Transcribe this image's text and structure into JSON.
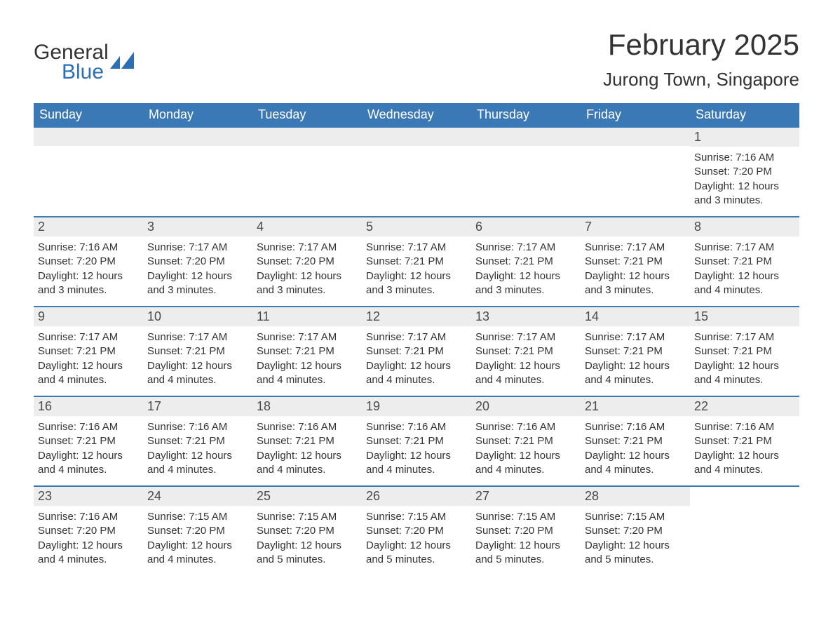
{
  "logo": {
    "text_general": "General",
    "text_blue": "Blue",
    "sail_color": "#2d6fb4"
  },
  "title": {
    "month": "February 2025",
    "location": "Jurong Town, Singapore"
  },
  "colors": {
    "header_bg": "#3b79b6",
    "header_text": "#ffffff",
    "row_accent": "#3b79b6",
    "daynum_bg": "#ededed",
    "body_text": "#333333"
  },
  "labels": {
    "sunrise_prefix": "Sunrise: ",
    "sunset_prefix": "Sunset: ",
    "daylight_prefix": "Daylight: "
  },
  "day_headers": [
    "Sunday",
    "Monday",
    "Tuesday",
    "Wednesday",
    "Thursday",
    "Friday",
    "Saturday"
  ],
  "weeks": [
    [
      null,
      null,
      null,
      null,
      null,
      null,
      {
        "n": "1",
        "sunrise": "7:16 AM",
        "sunset": "7:20 PM",
        "daylight": "12 hours and 3 minutes."
      }
    ],
    [
      {
        "n": "2",
        "sunrise": "7:16 AM",
        "sunset": "7:20 PM",
        "daylight": "12 hours and 3 minutes."
      },
      {
        "n": "3",
        "sunrise": "7:17 AM",
        "sunset": "7:20 PM",
        "daylight": "12 hours and 3 minutes."
      },
      {
        "n": "4",
        "sunrise": "7:17 AM",
        "sunset": "7:20 PM",
        "daylight": "12 hours and 3 minutes."
      },
      {
        "n": "5",
        "sunrise": "7:17 AM",
        "sunset": "7:21 PM",
        "daylight": "12 hours and 3 minutes."
      },
      {
        "n": "6",
        "sunrise": "7:17 AM",
        "sunset": "7:21 PM",
        "daylight": "12 hours and 3 minutes."
      },
      {
        "n": "7",
        "sunrise": "7:17 AM",
        "sunset": "7:21 PM",
        "daylight": "12 hours and 3 minutes."
      },
      {
        "n": "8",
        "sunrise": "7:17 AM",
        "sunset": "7:21 PM",
        "daylight": "12 hours and 4 minutes."
      }
    ],
    [
      {
        "n": "9",
        "sunrise": "7:17 AM",
        "sunset": "7:21 PM",
        "daylight": "12 hours and 4 minutes."
      },
      {
        "n": "10",
        "sunrise": "7:17 AM",
        "sunset": "7:21 PM",
        "daylight": "12 hours and 4 minutes."
      },
      {
        "n": "11",
        "sunrise": "7:17 AM",
        "sunset": "7:21 PM",
        "daylight": "12 hours and 4 minutes."
      },
      {
        "n": "12",
        "sunrise": "7:17 AM",
        "sunset": "7:21 PM",
        "daylight": "12 hours and 4 minutes."
      },
      {
        "n": "13",
        "sunrise": "7:17 AM",
        "sunset": "7:21 PM",
        "daylight": "12 hours and 4 minutes."
      },
      {
        "n": "14",
        "sunrise": "7:17 AM",
        "sunset": "7:21 PM",
        "daylight": "12 hours and 4 minutes."
      },
      {
        "n": "15",
        "sunrise": "7:17 AM",
        "sunset": "7:21 PM",
        "daylight": "12 hours and 4 minutes."
      }
    ],
    [
      {
        "n": "16",
        "sunrise": "7:16 AM",
        "sunset": "7:21 PM",
        "daylight": "12 hours and 4 minutes."
      },
      {
        "n": "17",
        "sunrise": "7:16 AM",
        "sunset": "7:21 PM",
        "daylight": "12 hours and 4 minutes."
      },
      {
        "n": "18",
        "sunrise": "7:16 AM",
        "sunset": "7:21 PM",
        "daylight": "12 hours and 4 minutes."
      },
      {
        "n": "19",
        "sunrise": "7:16 AM",
        "sunset": "7:21 PM",
        "daylight": "12 hours and 4 minutes."
      },
      {
        "n": "20",
        "sunrise": "7:16 AM",
        "sunset": "7:21 PM",
        "daylight": "12 hours and 4 minutes."
      },
      {
        "n": "21",
        "sunrise": "7:16 AM",
        "sunset": "7:21 PM",
        "daylight": "12 hours and 4 minutes."
      },
      {
        "n": "22",
        "sunrise": "7:16 AM",
        "sunset": "7:21 PM",
        "daylight": "12 hours and 4 minutes."
      }
    ],
    [
      {
        "n": "23",
        "sunrise": "7:16 AM",
        "sunset": "7:20 PM",
        "daylight": "12 hours and 4 minutes."
      },
      {
        "n": "24",
        "sunrise": "7:15 AM",
        "sunset": "7:20 PM",
        "daylight": "12 hours and 4 minutes."
      },
      {
        "n": "25",
        "sunrise": "7:15 AM",
        "sunset": "7:20 PM",
        "daylight": "12 hours and 5 minutes."
      },
      {
        "n": "26",
        "sunrise": "7:15 AM",
        "sunset": "7:20 PM",
        "daylight": "12 hours and 5 minutes."
      },
      {
        "n": "27",
        "sunrise": "7:15 AM",
        "sunset": "7:20 PM",
        "daylight": "12 hours and 5 minutes."
      },
      {
        "n": "28",
        "sunrise": "7:15 AM",
        "sunset": "7:20 PM",
        "daylight": "12 hours and 5 minutes."
      },
      null
    ]
  ]
}
